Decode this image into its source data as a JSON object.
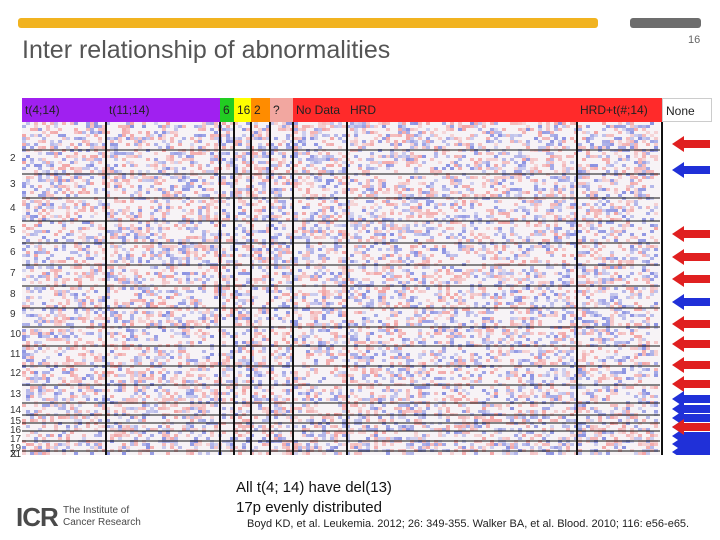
{
  "slide": {
    "title": "Inter relationship of abnormalities",
    "number": "16"
  },
  "groups": [
    {
      "label": "t(4;14)",
      "color": "#a020f0"
    },
    {
      "label": "t(11;14)",
      "color": "#a020f0"
    },
    {
      "label": "6",
      "color": "#22cc22"
    },
    {
      "label": "16",
      "color": "#ffff00"
    },
    {
      "label": "2",
      "color": "#ff8c00"
    },
    {
      "label": "?",
      "color": "#f2a7a0"
    },
    {
      "label": "No Data",
      "color": "#ff2a2a"
    },
    {
      "label": "HRD",
      "color": "#ff2a2a"
    },
    {
      "label": "HRD+t(#;14)",
      "color": "#ff2a2a"
    },
    {
      "label": "None",
      "color": "#ffffff"
    }
  ],
  "chromosomes": [
    "2",
    "3",
    "4",
    "5",
    "6",
    "7",
    "8",
    "9",
    "10",
    "11",
    "12",
    "13",
    "14",
    "15",
    "16",
    "17",
    "19",
    "21",
    "X"
  ],
  "arrows": [
    {
      "direction": "left",
      "color": "red"
    },
    {
      "direction": "left",
      "color": "blue"
    },
    {
      "direction": "left",
      "color": "red"
    },
    {
      "direction": "left",
      "color": "red"
    },
    {
      "direction": "left",
      "color": "red"
    },
    {
      "direction": "left",
      "color": "blue"
    },
    {
      "direction": "left",
      "color": "red"
    },
    {
      "direction": "left",
      "color": "red"
    },
    {
      "direction": "left",
      "color": "red"
    },
    {
      "direction": "left",
      "color": "red"
    },
    {
      "direction": "left",
      "color": "blue"
    },
    {
      "direction": "left",
      "color": "blue"
    },
    {
      "direction": "left",
      "color": "blue"
    },
    {
      "direction": "left",
      "color": "blue"
    },
    {
      "direction": "left",
      "color": "blue"
    },
    {
      "direction": "left",
      "color": "blue"
    },
    {
      "direction": "left",
      "color": "red"
    },
    {
      "direction": "left",
      "color": "blue"
    }
  ],
  "caption": {
    "line1": "All t(4; 14) have del(13)",
    "line2": "17p evenly distributed"
  },
  "citation": "Boyd KD, et al. Leukemia. 2012; 26: 349-355. Walker BA, et al. Blood. 2010; 116: e56-e65.",
  "logo": {
    "mark": "ICR",
    "line1": "The Institute of",
    "line2": "Cancer Research"
  }
}
